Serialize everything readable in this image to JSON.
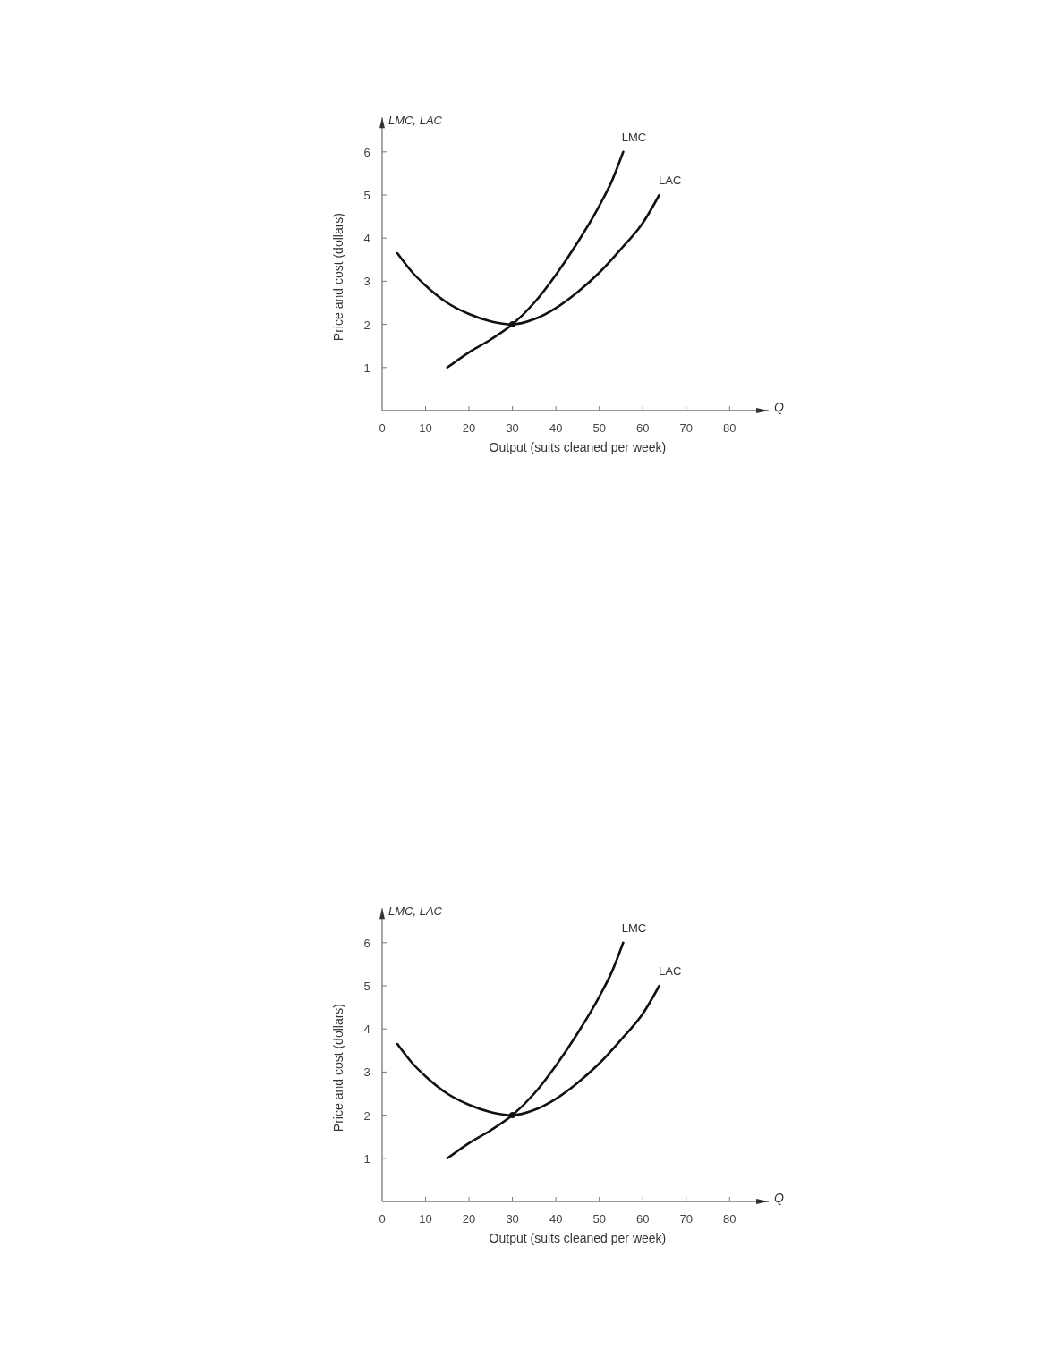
{
  "chart_data": [
    {
      "type": "line",
      "xlabel": "Output (suits cleaned per week)",
      "ylabel": "Price and cost (dollars)",
      "annotations": [
        "LMC, LAC",
        "Q"
      ],
      "xlim": [
        0,
        89
      ],
      "ylim": [
        0,
        6.8
      ],
      "xticks": [
        0,
        10,
        20,
        30,
        40,
        50,
        60,
        70,
        80
      ],
      "yticks": [
        1,
        2,
        3,
        4,
        5,
        6
      ],
      "grid": false,
      "marker": "none",
      "line_style": "solid",
      "series": [
        {
          "name": "LMC",
          "color": "#111111",
          "x": [
            15,
            20,
            25,
            30,
            35,
            40,
            45,
            50,
            53,
            55.5
          ],
          "values": [
            1.0,
            1.35,
            1.65,
            2.0,
            2.5,
            3.15,
            3.9,
            4.75,
            5.35,
            6.0
          ]
        },
        {
          "name": "LAC",
          "color": "#111111",
          "x": [
            3.5,
            7,
            10,
            15,
            20,
            25,
            30,
            35,
            40,
            45,
            50,
            55,
            60,
            63.8
          ],
          "values": [
            3.65,
            3.2,
            2.9,
            2.5,
            2.24,
            2.07,
            2.0,
            2.12,
            2.38,
            2.75,
            3.2,
            3.75,
            4.35,
            5.0
          ]
        },
        {
          "type": "scatter",
          "color": "#111111",
          "marker": "circle",
          "x": [
            30
          ],
          "values": [
            2.0
          ]
        }
      ]
    },
    {
      "type": "line",
      "xlabel": "Output (suits cleaned per week)",
      "ylabel": "Price and cost (dollars)",
      "annotations": [
        "LMC, LAC",
        "Q"
      ],
      "xlim": [
        0,
        89
      ],
      "ylim": [
        0,
        6.8
      ],
      "xticks": [
        0,
        10,
        20,
        30,
        40,
        50,
        60,
        70,
        80
      ],
      "yticks": [
        1,
        2,
        3,
        4,
        5,
        6
      ],
      "grid": false,
      "marker": "none",
      "line_style": "solid",
      "series": [
        {
          "name": "LMC",
          "color": "#111111",
          "x": [
            15,
            20,
            25,
            30,
            35,
            40,
            45,
            50,
            53,
            55.5
          ],
          "values": [
            1.0,
            1.35,
            1.65,
            2.0,
            2.5,
            3.15,
            3.9,
            4.75,
            5.35,
            6.0
          ]
        },
        {
          "name": "LAC",
          "color": "#111111",
          "x": [
            3.5,
            7,
            10,
            15,
            20,
            25,
            30,
            35,
            40,
            45,
            50,
            55,
            60,
            63.8
          ],
          "values": [
            3.65,
            3.2,
            2.9,
            2.5,
            2.24,
            2.07,
            2.0,
            2.12,
            2.38,
            2.75,
            3.2,
            3.75,
            4.35,
            5.0
          ]
        },
        {
          "type": "scatter",
          "color": "#111111",
          "marker": "circle",
          "x": [
            30
          ],
          "values": [
            2.0
          ]
        }
      ]
    }
  ]
}
